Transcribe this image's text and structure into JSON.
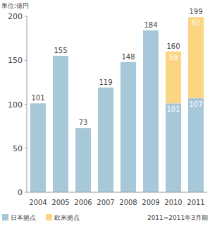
{
  "chart_data": {
    "type": "bar",
    "stacked": true,
    "ylabel": "単位:億円",
    "categories": [
      "2004",
      "2005",
      "2006",
      "2007",
      "2008",
      "2009",
      "2010",
      "2011"
    ],
    "series": [
      {
        "name": "日本拠点",
        "color": "#a7c8d9",
        "data_labels": true,
        "values": [
          101,
          155,
          73,
          119,
          148,
          184,
          101,
          107
        ]
      },
      {
        "name": "欧米拠点",
        "color": "#fbd582",
        "data_labels": true,
        "values": [
          null,
          null,
          null,
          null,
          null,
          null,
          59,
          92
        ]
      }
    ],
    "totals": [
      101,
      155,
      73,
      119,
      148,
      184,
      160,
      199
    ],
    "ylim": [
      0,
      200
    ],
    "yticks": [
      0,
      50,
      100,
      150,
      200
    ],
    "grid": false,
    "legend": "bottom-left",
    "annotations": [
      "2011=2011年3月期"
    ]
  }
}
